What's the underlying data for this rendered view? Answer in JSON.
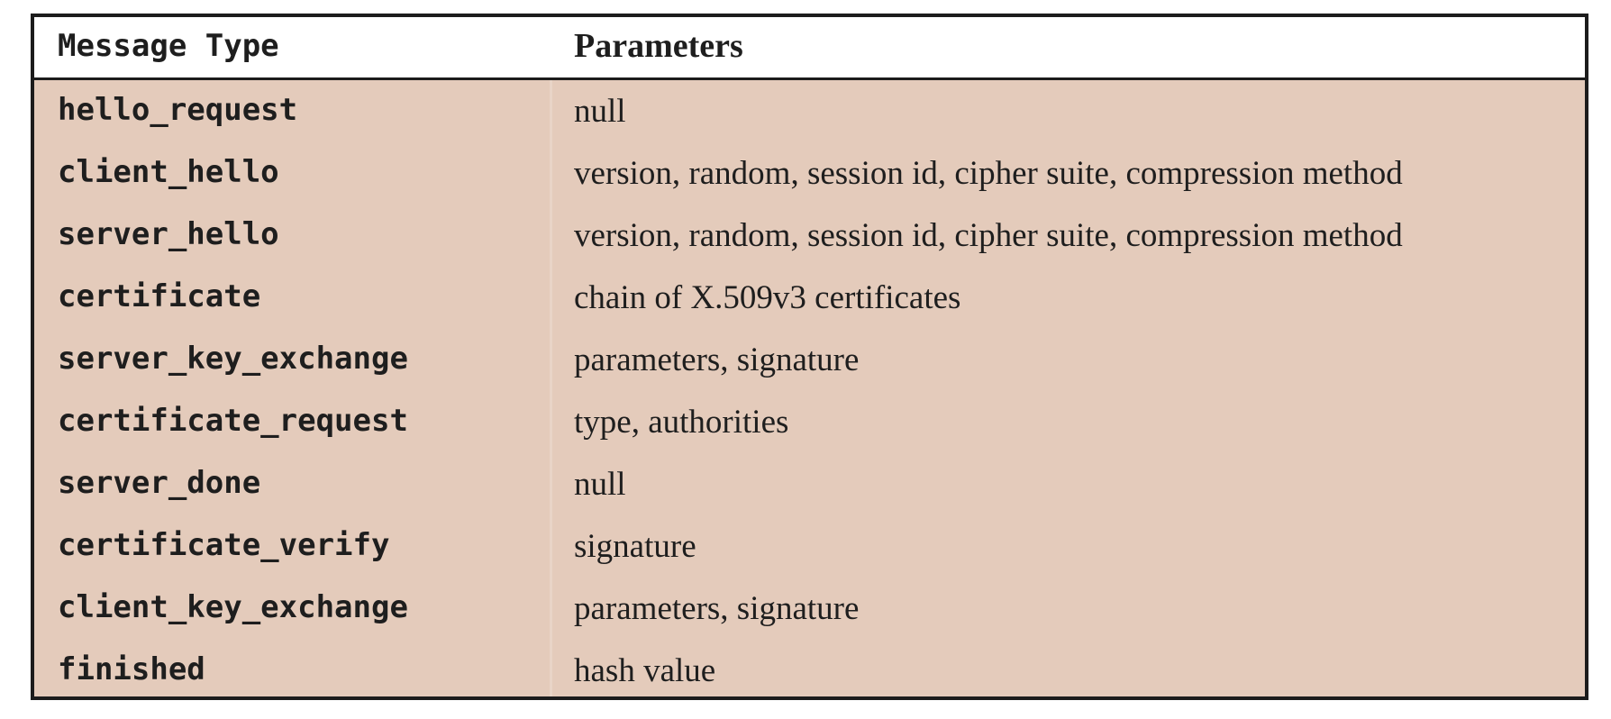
{
  "table": {
    "headers": {
      "message_type": "Message Type",
      "parameters": "Parameters"
    },
    "rows": [
      {
        "type": "hello_request",
        "params": "null"
      },
      {
        "type": "client_hello",
        "params": "version, random, session id, cipher suite, compression method"
      },
      {
        "type": "server_hello",
        "params": "version, random, session id, cipher suite, compression method"
      },
      {
        "type": "certificate",
        "params": "chain of X.509v3 certificates"
      },
      {
        "type": "server_key_exchange",
        "params": "parameters, signature"
      },
      {
        "type": "certificate_request",
        "params": "type, authorities"
      },
      {
        "type": "server_done",
        "params": "null"
      },
      {
        "type": "certificate_verify",
        "params": "signature"
      },
      {
        "type": "client_key_exchange",
        "params": "parameters, signature"
      },
      {
        "type": "finished",
        "params": "hash value"
      }
    ]
  },
  "colors": {
    "body_background": "#e4cbbb",
    "header_background": "#ffffff",
    "border": "#1c1c1c"
  }
}
